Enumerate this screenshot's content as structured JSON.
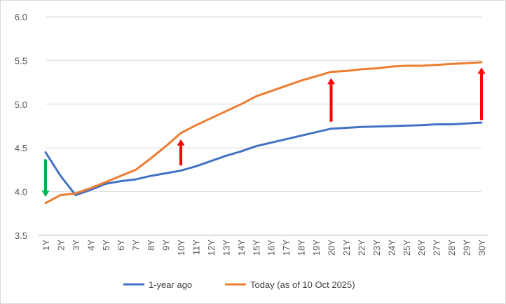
{
  "chart_data": {
    "type": "line",
    "title": "",
    "xlabel": "",
    "ylabel": "",
    "categories": [
      "1Y",
      "2Y",
      "3Y",
      "4Y",
      "5Y",
      "6Y",
      "7Y",
      "8Y",
      "9Y",
      "10Y",
      "11Y",
      "12Y",
      "13Y",
      "14Y",
      "15Y",
      "16Y",
      "17Y",
      "18Y",
      "19Y",
      "20Y",
      "21Y",
      "22Y",
      "23Y",
      "24Y",
      "25Y",
      "26Y",
      "27Y",
      "28Y",
      "29Y",
      "30Y"
    ],
    "ylim": [
      3.5,
      6.0
    ],
    "yticks": [
      "3.5",
      "4.0",
      "4.5",
      "5.0",
      "5.5",
      "6.0"
    ],
    "grid": "horizontal",
    "legend": "bottom",
    "series": [
      {
        "name": "1-year ago",
        "color": "#4472c4",
        "values": [
          4.45,
          4.18,
          3.96,
          4.02,
          4.09,
          4.12,
          4.14,
          4.18,
          4.21,
          4.24,
          4.29,
          4.35,
          4.41,
          4.46,
          4.52,
          4.56,
          4.6,
          4.64,
          4.68,
          4.72,
          4.73,
          4.74,
          4.745,
          4.75,
          4.755,
          4.76,
          4.77,
          4.77,
          4.78,
          4.79
        ]
      },
      {
        "name": "Today (as of 10 Oct 2025)",
        "color": "#ed7d31",
        "values": [
          3.87,
          3.96,
          3.98,
          4.04,
          4.11,
          4.18,
          4.25,
          4.38,
          4.52,
          4.67,
          4.76,
          4.84,
          4.92,
          5.0,
          5.09,
          5.15,
          5.21,
          5.27,
          5.32,
          5.37,
          5.38,
          5.4,
          5.41,
          5.43,
          5.44,
          5.44,
          5.45,
          5.46,
          5.47,
          5.48
        ]
      }
    ],
    "annotations": [
      {
        "kind": "arrow",
        "direction": "down",
        "category": "1Y",
        "from": 4.37,
        "to": 3.94,
        "color": "#00b050"
      },
      {
        "kind": "arrow",
        "direction": "up",
        "category": "10Y",
        "from": 4.3,
        "to": 4.6,
        "color": "#ff0000"
      },
      {
        "kind": "arrow",
        "direction": "up",
        "category": "20Y",
        "from": 4.8,
        "to": 5.3,
        "color": "#ff0000"
      },
      {
        "kind": "arrow",
        "direction": "up",
        "category": "30Y",
        "from": 4.82,
        "to": 5.42,
        "color": "#ff0000"
      }
    ]
  }
}
